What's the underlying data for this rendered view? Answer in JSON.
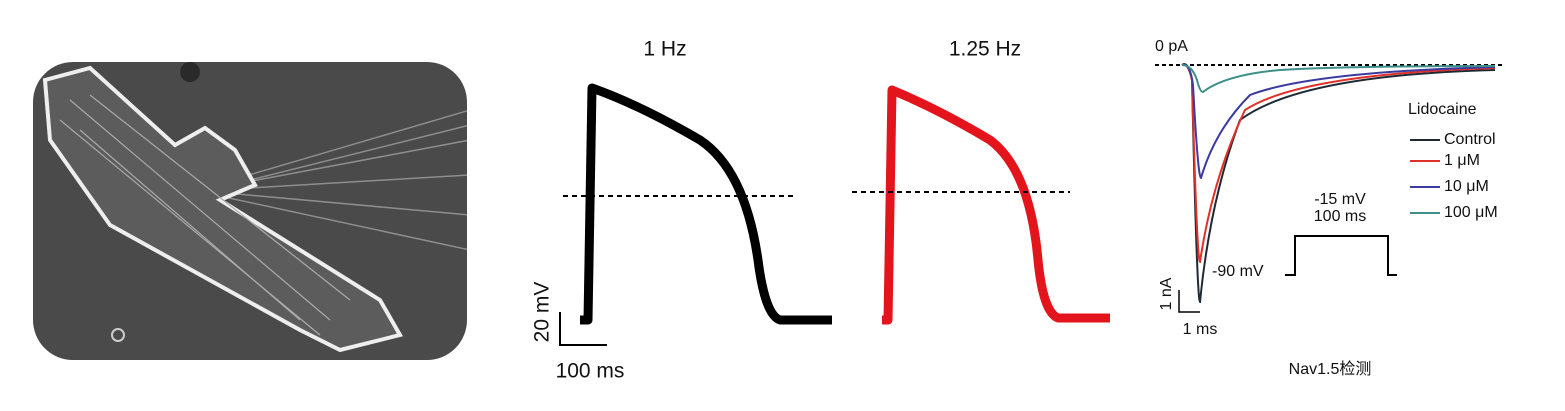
{
  "micrograph": {},
  "action_potentials": {
    "panel_1": {
      "title": "1 Hz"
    },
    "panel_2": {
      "title": "1.25 Hz"
    },
    "scale_bar": {
      "vertical": "20 mV",
      "horizontal": "100 ms"
    }
  },
  "nav_currents": {
    "zero_label": "0 pA",
    "legend": {
      "title": "Lidocaine",
      "entries": [
        "Control",
        "1 μM",
        "10 μM",
        "100 μM"
      ]
    },
    "protocol": {
      "step_voltage": "-15 mV",
      "step_duration": "100 ms",
      "holding": "-90 mV"
    },
    "scale_bar": {
      "vertical": "1 nA",
      "horizontal": "1 ms"
    },
    "caption": "Nav1.5检测"
  }
}
